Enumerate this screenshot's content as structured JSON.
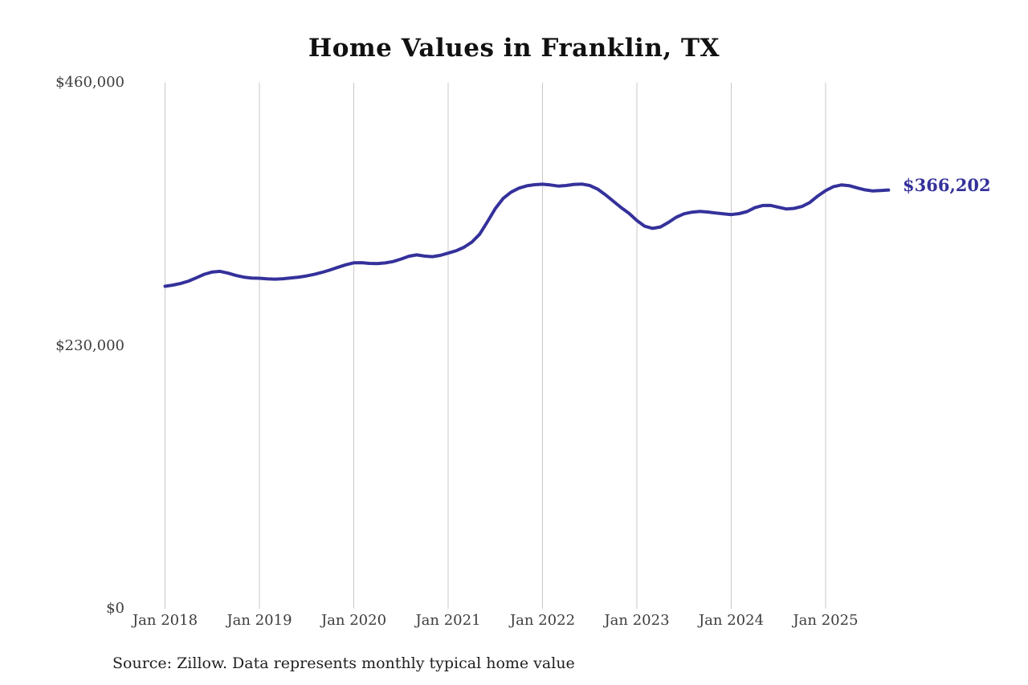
{
  "colors": {
    "line": "#34319b",
    "grid": "#c8c8c8",
    "title": "#111111",
    "tick_text": "#3d3d3d"
  },
  "chart_data": {
    "type": "line",
    "title": "Home Values in Franklin, TX",
    "xlabel": "",
    "ylabel": "",
    "ylim": [
      0,
      460000
    ],
    "grid": "vertical-only",
    "legend": "none",
    "x_start": "2018-01",
    "x_end": "2025-09",
    "x_frequency": "monthly",
    "x_tick_labels": [
      "Jan 2018",
      "Jan 2019",
      "Jan 2020",
      "Jan 2021",
      "Jan 2022",
      "Jan 2023",
      "Jan 2024",
      "Jan 2025"
    ],
    "y_tick_labels": [
      "$460,000",
      "$230,000",
      "$0"
    ],
    "y_tick_values": [
      460000,
      230000,
      0
    ],
    "end_label": "$366,202",
    "source": "Source: Zillow. Data represents monthly typical home value",
    "series": [
      {
        "name": "Typical home value",
        "values": [
          282000,
          283000,
          284500,
          286500,
          289500,
          292500,
          294500,
          295000,
          293500,
          291500,
          290000,
          289200,
          289000,
          288400,
          288200,
          288600,
          289300,
          290000,
          291000,
          292400,
          294200,
          296300,
          298600,
          300800,
          302500,
          302600,
          302000,
          301800,
          302400,
          303600,
          305800,
          308200,
          309400,
          308400,
          307900,
          309000,
          311000,
          313000,
          316000,
          320500,
          327500,
          338500,
          350000,
          358800,
          364300,
          367800,
          369800,
          370800,
          371200,
          370600,
          369600,
          370100,
          371100,
          371400,
          370100,
          367000,
          362000,
          356400,
          350800,
          345800,
          339500,
          334500,
          332600,
          333900,
          337800,
          342400,
          345400,
          346800,
          347400,
          346900,
          346100,
          345300,
          344700,
          345500,
          347300,
          350700,
          352600,
          352700,
          351100,
          349600,
          350100,
          351800,
          355300,
          360900,
          365600,
          369100,
          370600,
          370000,
          368100,
          366300,
          365300,
          365700,
          366202
        ]
      }
    ]
  }
}
